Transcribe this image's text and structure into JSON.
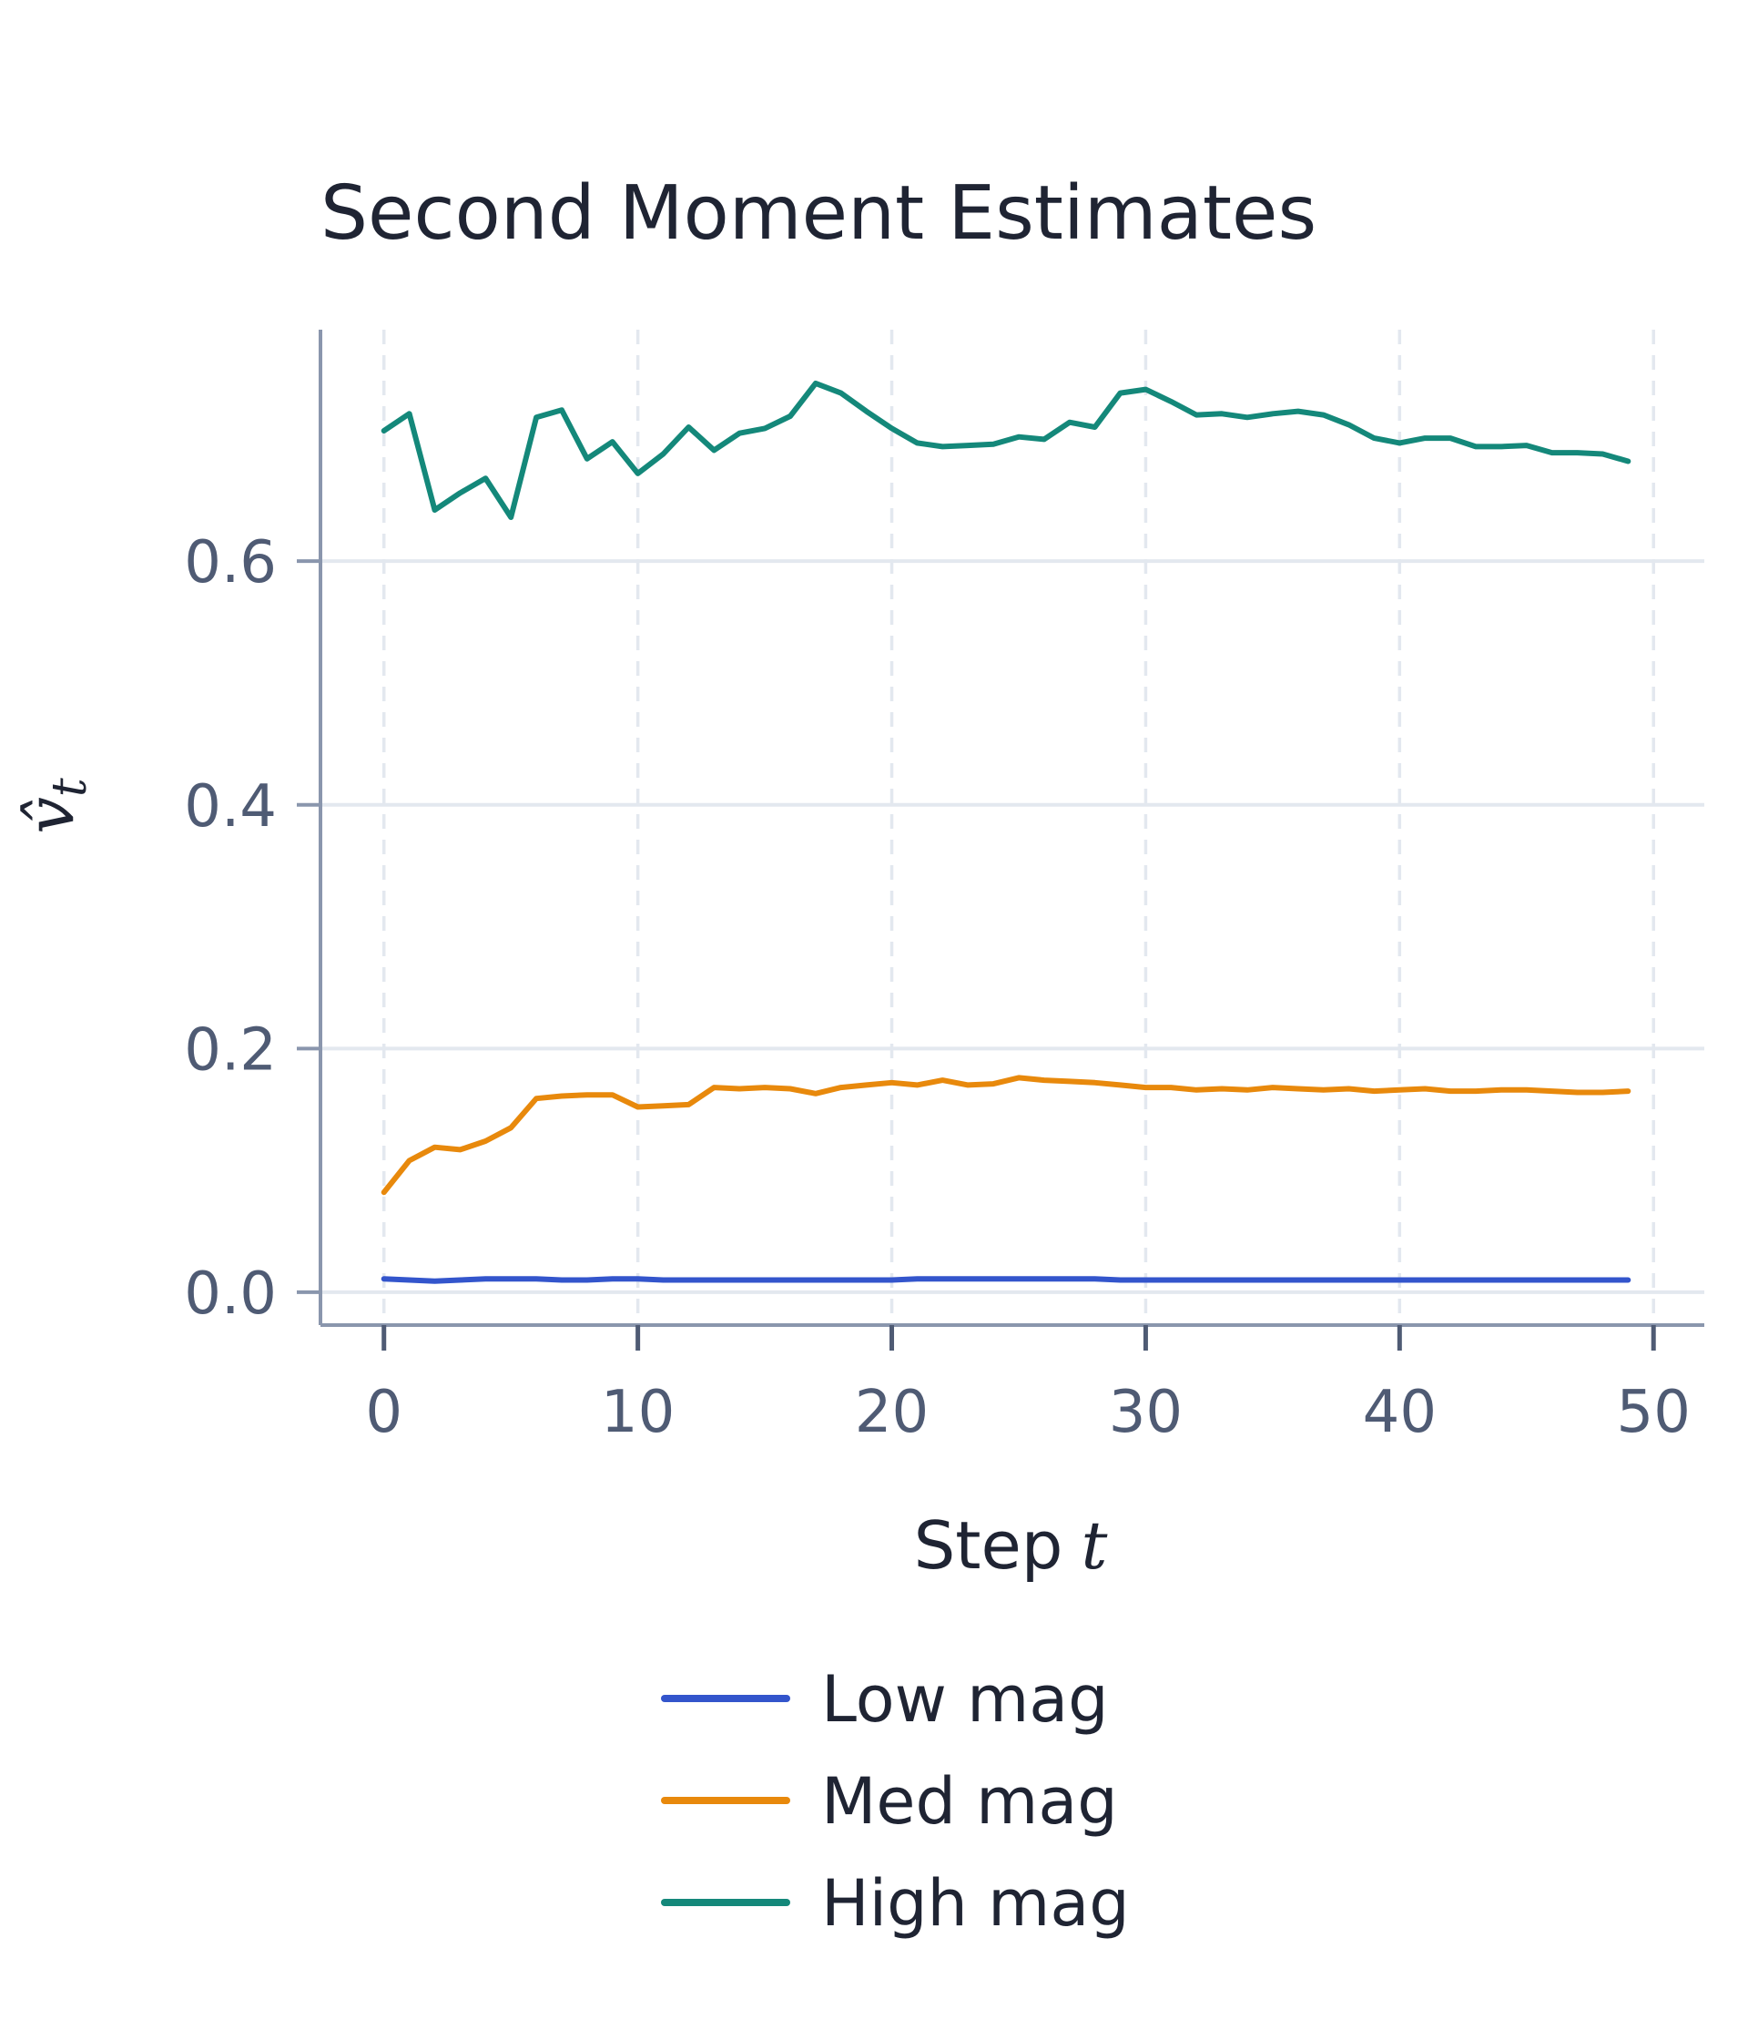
{
  "chart_data": {
    "type": "line",
    "title": "Second Moment Estimates",
    "xlabel": "Step",
    "xlabel_symbol": "t",
    "ylabel_symbol": "v̂",
    "ylabel_subscript": "t",
    "xlim": [
      -2.5,
      52
    ],
    "ylim": [
      -0.027,
      0.79
    ],
    "xticks": [
      0,
      10,
      20,
      30,
      40,
      50
    ],
    "xtick_labels": [
      "0",
      "10",
      "20",
      "30",
      "40",
      "50"
    ],
    "yticks": [
      0.0,
      0.2,
      0.4,
      0.6
    ],
    "ytick_labels": [
      "0.0",
      "0.2",
      "0.4",
      "0.6"
    ],
    "grid": true,
    "legend_position": "bottom-center",
    "x": [
      0,
      1,
      2,
      3,
      4,
      5,
      6,
      7,
      8,
      9,
      10,
      11,
      12,
      13,
      14,
      15,
      16,
      17,
      18,
      19,
      20,
      21,
      22,
      23,
      24,
      25,
      26,
      27,
      28,
      29,
      30,
      31,
      32,
      33,
      34,
      35,
      36,
      37,
      38,
      39,
      40,
      41,
      42,
      43,
      44,
      45,
      46,
      47,
      48,
      49
    ],
    "series": [
      {
        "name": "Low mag",
        "color": "#3355cc",
        "values": [
          0.011,
          0.01,
          0.009,
          0.01,
          0.011,
          0.011,
          0.011,
          0.01,
          0.01,
          0.011,
          0.011,
          0.01,
          0.01,
          0.01,
          0.01,
          0.01,
          0.01,
          0.01,
          0.01,
          0.01,
          0.01,
          0.011,
          0.011,
          0.011,
          0.011,
          0.011,
          0.011,
          0.011,
          0.011,
          0.01,
          0.01,
          0.01,
          0.01,
          0.01,
          0.01,
          0.01,
          0.01,
          0.01,
          0.01,
          0.01,
          0.01,
          0.01,
          0.01,
          0.01,
          0.01,
          0.01,
          0.01,
          0.01,
          0.01,
          0.01
        ]
      },
      {
        "name": "Med mag",
        "color": "#e8890c",
        "values": [
          0.082,
          0.108,
          0.119,
          0.117,
          0.124,
          0.135,
          0.159,
          0.161,
          0.162,
          0.162,
          0.152,
          0.153,
          0.154,
          0.168,
          0.167,
          0.168,
          0.167,
          0.163,
          0.168,
          0.17,
          0.172,
          0.17,
          0.174,
          0.17,
          0.171,
          0.176,
          0.174,
          0.173,
          0.172,
          0.17,
          0.168,
          0.168,
          0.166,
          0.167,
          0.166,
          0.168,
          0.167,
          0.166,
          0.167,
          0.165,
          0.166,
          0.167,
          0.165,
          0.165,
          0.166,
          0.166,
          0.165,
          0.164,
          0.164,
          0.165
        ]
      },
      {
        "name": "High mag",
        "color": "#14887a",
        "values": [
          0.707,
          0.721,
          0.642,
          0.656,
          0.668,
          0.636,
          0.718,
          0.724,
          0.684,
          0.698,
          0.672,
          0.688,
          0.71,
          0.691,
          0.705,
          0.709,
          0.719,
          0.746,
          0.738,
          0.723,
          0.709,
          0.697,
          0.694,
          0.695,
          0.696,
          0.702,
          0.7,
          0.714,
          0.71,
          0.738,
          0.741,
          0.731,
          0.72,
          0.721,
          0.718,
          0.721,
          0.723,
          0.72,
          0.712,
          0.701,
          0.697,
          0.701,
          0.701,
          0.694,
          0.694,
          0.695,
          0.689,
          0.689,
          0.688,
          0.682
        ]
      }
    ]
  }
}
